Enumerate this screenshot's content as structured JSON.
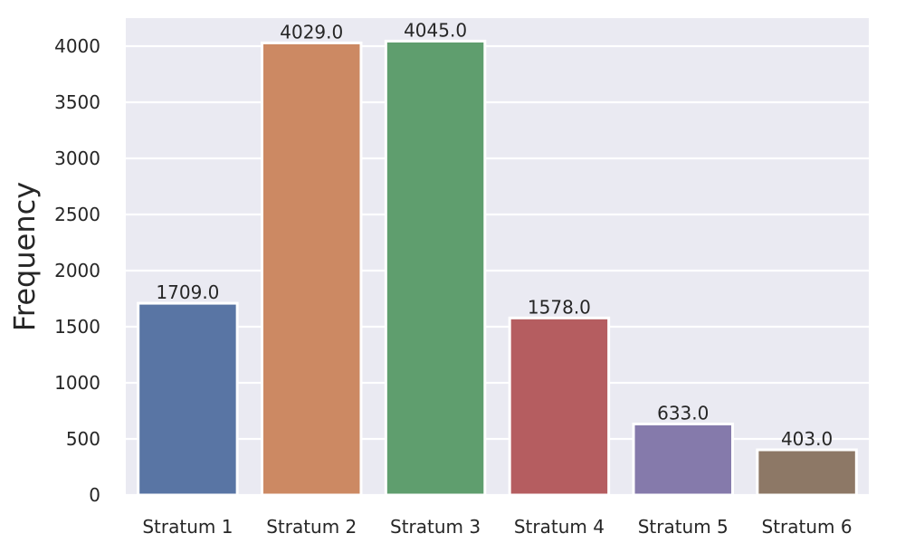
{
  "chart_data": {
    "type": "bar",
    "title": "",
    "xlabel": "",
    "ylabel": "Frequency",
    "categories": [
      "Stratum 1",
      "Stratum 2",
      "Stratum 3",
      "Stratum 4",
      "Stratum 5",
      "Stratum 6"
    ],
    "values": [
      1709.0,
      4029.0,
      4045.0,
      1578.0,
      633.0,
      403.0
    ],
    "value_labels": [
      "1709.0",
      "4029.0",
      "4045.0",
      "1578.0",
      "633.0",
      "403.0"
    ],
    "colors": [
      "#5975a4",
      "#cc8963",
      "#5f9e6e",
      "#b55d60",
      "#857aab",
      "#8d7866"
    ],
    "ylim": [
      0,
      4250
    ],
    "yticks": [
      0,
      500,
      1000,
      1500,
      2000,
      2500,
      3000,
      3500,
      4000
    ],
    "grid": true,
    "legend": "none",
    "background_color": "#eaeaf2",
    "grid_color": "#ffffff"
  }
}
